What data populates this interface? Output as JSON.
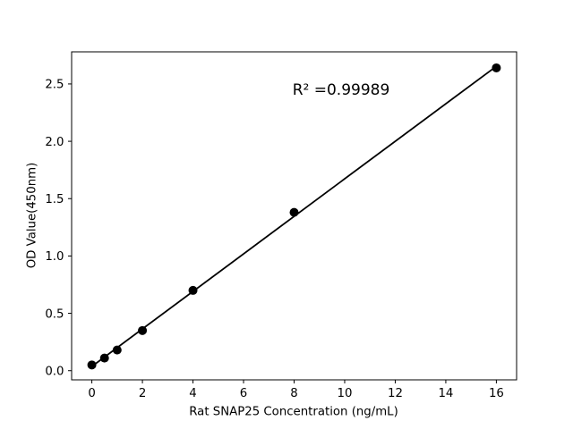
{
  "chart_data": {
    "type": "scatter",
    "title": "",
    "xlabel": "Rat SNAP25 Concentration (ng/mL)",
    "ylabel": "OD Value(450nm)",
    "annotation": "R² =0.99989",
    "r_squared": 0.99989,
    "x": [
      0,
      0.5,
      1,
      2,
      4,
      8,
      16
    ],
    "y": [
      0.05,
      0.11,
      0.18,
      0.35,
      0.7,
      1.38,
      2.64
    ],
    "fit_line": {
      "x": [
        0,
        16
      ],
      "y": [
        0.037,
        2.654
      ]
    },
    "xlim": [
      -0.8,
      16.8
    ],
    "ylim": [
      -0.08,
      2.78
    ],
    "xticks": [
      0,
      2,
      4,
      6,
      8,
      10,
      12,
      14,
      16
    ],
    "xtick_labels": [
      "0",
      "2",
      "4",
      "6",
      "8",
      "10",
      "12",
      "14",
      "16"
    ],
    "yticks": [
      0,
      0.5,
      1.0,
      1.5,
      2.0,
      2.5
    ],
    "ytick_labels": [
      "0.0",
      "0.5",
      "1.0",
      "1.5",
      "2.0",
      "2.5"
    ],
    "grid": false,
    "legend": "none",
    "marker_color": "#000000",
    "line_color": "#000000",
    "axis_color": "#000000",
    "background": "#ffffff"
  }
}
